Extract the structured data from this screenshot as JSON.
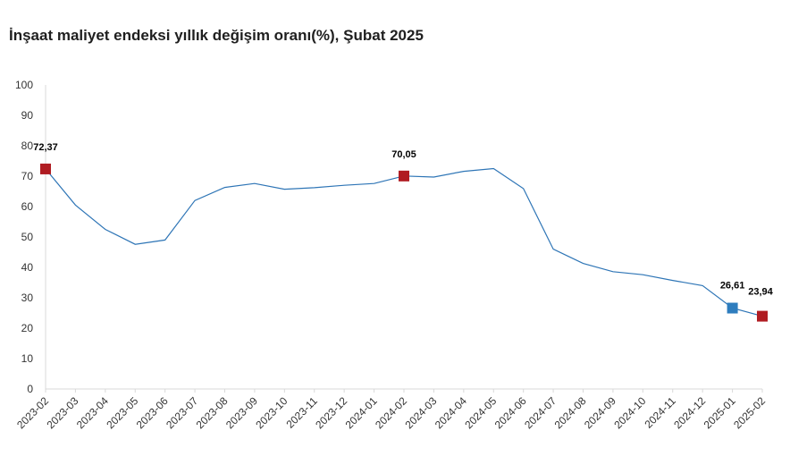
{
  "chart_data": {
    "type": "line",
    "title": "İnşaat maliyet endeksi yıllık değişim oranı(%), Şubat 2025",
    "xlabel": "",
    "ylabel": "",
    "ylim": [
      0,
      100
    ],
    "yticks": [
      0,
      10,
      20,
      30,
      40,
      50,
      60,
      70,
      80,
      90,
      100
    ],
    "grid": false,
    "categories": [
      "2023-02",
      "2023-03",
      "2023-04",
      "2023-05",
      "2023-06",
      "2023-07",
      "2023-08",
      "2023-09",
      "2023-10",
      "2023-11",
      "2023-12",
      "2024-01",
      "2024-02",
      "2024-03",
      "2024-04",
      "2024-05",
      "2024-06",
      "2024-07",
      "2024-08",
      "2024-09",
      "2024-10",
      "2024-11",
      "2024-12",
      "2025-01",
      "2025-02"
    ],
    "series": [
      {
        "values": [
          72.37,
          60.5,
          52.5,
          47.6,
          49.0,
          62.0,
          66.3,
          67.6,
          65.7,
          66.2,
          67.0,
          67.6,
          70.05,
          69.7,
          71.6,
          72.5,
          65.9,
          46.0,
          41.3,
          38.6,
          37.6,
          35.7,
          34.0,
          26.61,
          23.94
        ]
      }
    ],
    "highlighted_points": [
      {
        "index": 0,
        "label": "72,37",
        "color": "#b01c22"
      },
      {
        "index": 12,
        "label": "70,05",
        "color": "#b01c22"
      },
      {
        "index": 23,
        "label": "26,61",
        "color": "#2e7dbe"
      },
      {
        "index": 24,
        "label": "23,94",
        "color": "#b01c22"
      }
    ],
    "line_color": "#2e75b6",
    "axis_color": "#d9d9d9"
  }
}
